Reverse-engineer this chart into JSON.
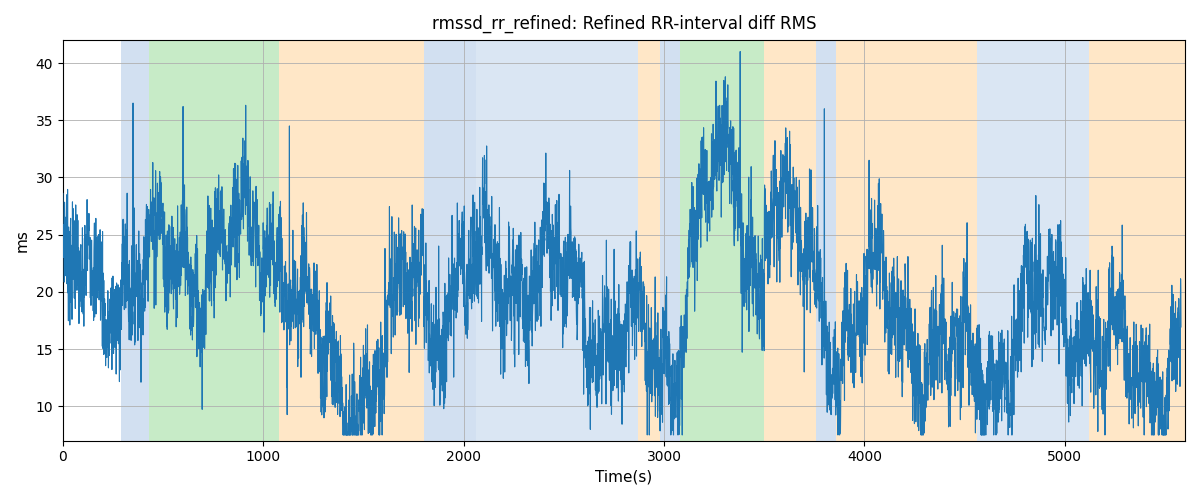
{
  "title": "rmssd_rr_refined: Refined RR-interval diff RMS",
  "xlabel": "Time(s)",
  "ylabel": "ms",
  "xlim": [
    0,
    5600
  ],
  "ylim": [
    7,
    42
  ],
  "yticks": [
    10,
    15,
    20,
    25,
    30,
    35,
    40
  ],
  "line_color": "#1f77b4",
  "line_width": 0.8,
  "grid_color": "#b0b0b0",
  "figsize": [
    12,
    5
  ],
  "dpi": 100,
  "bands": [
    {
      "xmin": 290,
      "xmax": 430,
      "color": "#adc8e6",
      "alpha": 0.55
    },
    {
      "xmin": 430,
      "xmax": 1080,
      "color": "#90d890",
      "alpha": 0.5
    },
    {
      "xmin": 1080,
      "xmax": 1800,
      "color": "#ffd090",
      "alpha": 0.5
    },
    {
      "xmin": 1800,
      "xmax": 2060,
      "color": "#adc8e6",
      "alpha": 0.55
    },
    {
      "xmin": 2060,
      "xmax": 2870,
      "color": "#adc8e6",
      "alpha": 0.45
    },
    {
      "xmin": 2870,
      "xmax": 2980,
      "color": "#ffd090",
      "alpha": 0.5
    },
    {
      "xmin": 2980,
      "xmax": 3080,
      "color": "#adc8e6",
      "alpha": 0.55
    },
    {
      "xmin": 3080,
      "xmax": 3500,
      "color": "#90d890",
      "alpha": 0.5
    },
    {
      "xmin": 3500,
      "xmax": 3760,
      "color": "#ffd090",
      "alpha": 0.5
    },
    {
      "xmin": 3760,
      "xmax": 3860,
      "color": "#adc8e6",
      "alpha": 0.55
    },
    {
      "xmin": 3860,
      "xmax": 4560,
      "color": "#ffd090",
      "alpha": 0.5
    },
    {
      "xmin": 4560,
      "xmax": 5120,
      "color": "#adc8e6",
      "alpha": 0.45
    },
    {
      "xmin": 5120,
      "xmax": 5600,
      "color": "#ffd090",
      "alpha": 0.5
    }
  ]
}
